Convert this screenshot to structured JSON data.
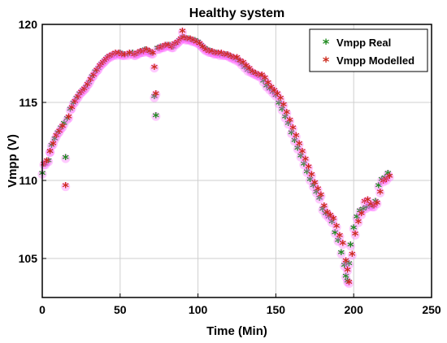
{
  "chart_data": {
    "type": "scatter",
    "title": "Healthy system",
    "xlabel": "Time (Min)",
    "ylabel": "Vmpp (V)",
    "xlim": [
      0,
      250
    ],
    "ylim": [
      102.5,
      120
    ],
    "xticks": [
      0,
      50,
      100,
      150,
      200,
      250
    ],
    "yticks": [
      105,
      110,
      115,
      120
    ],
    "grid": true,
    "legend_position": "top-right",
    "series": [
      {
        "name": "Vmpp Real",
        "color": "#1e8a1e",
        "marker": "*",
        "x": [
          0,
          2,
          4,
          5,
          6,
          8,
          10,
          12,
          14,
          15,
          16,
          18,
          20,
          22,
          24,
          26,
          28,
          30,
          32,
          34,
          36,
          38,
          40,
          42,
          44,
          46,
          48,
          50,
          52,
          55,
          58,
          60,
          62,
          64,
          66,
          68,
          70,
          72,
          73,
          74,
          76,
          78,
          80,
          82,
          84,
          86,
          88,
          90,
          92,
          94,
          96,
          98,
          100,
          102,
          104,
          106,
          108,
          110,
          112,
          114,
          116,
          118,
          120,
          122,
          124,
          126,
          128,
          130,
          132,
          134,
          136,
          138,
          140,
          142,
          144,
          146,
          148,
          150,
          152,
          154,
          156,
          158,
          160,
          162,
          164,
          166,
          168,
          170,
          172,
          174,
          176,
          178,
          180,
          182,
          184,
          186,
          188,
          190,
          192,
          194,
          195,
          196,
          197,
          198,
          200,
          202,
          204,
          206,
          208,
          210,
          212,
          214,
          216,
          218,
          220,
          222
        ],
        "y": [
          110.4,
          111,
          111.2,
          111.8,
          112.2,
          112.6,
          113,
          113.3,
          113.6,
          111.4,
          113.9,
          114.5,
          114.9,
          115.2,
          115.5,
          115.7,
          115.9,
          116.2,
          116.6,
          116.9,
          117.1,
          117.4,
          117.6,
          117.8,
          117.9,
          118,
          118,
          118.1,
          118,
          118,
          118.1,
          118,
          118.1,
          118.2,
          118.3,
          118.2,
          118.1,
          115.3,
          114.1,
          118.4,
          118.5,
          118.5,
          118.6,
          118.6,
          118.5,
          118.7,
          118.9,
          119.1,
          119,
          119,
          118.9,
          118.9,
          118.8,
          118.6,
          118.4,
          118.3,
          118.2,
          118.1,
          118.1,
          118,
          118,
          118,
          117.9,
          117.8,
          117.7,
          117.6,
          117.4,
          117.2,
          117,
          116.9,
          116.8,
          116.7,
          116.6,
          116.3,
          116,
          115.8,
          115.6,
          115.4,
          114.9,
          114.5,
          114,
          113.6,
          113,
          112.5,
          112,
          111.5,
          111,
          110.5,
          110,
          109.6,
          109.2,
          108.8,
          108.1,
          107.8,
          107.6,
          107.3,
          106.6,
          106.1,
          105.3,
          104.5,
          103.8,
          103.5,
          104.6,
          105.8,
          106.9,
          107.6,
          108,
          108.1,
          108.2,
          108.3,
          108.3,
          108.6,
          109.6,
          110,
          110.1,
          110.4
        ]
      },
      {
        "name": "Vmpp Modelled",
        "color": "#cc2a1c",
        "marker": "*",
        "x": [
          1,
          3,
          5,
          7,
          9,
          11,
          13,
          15,
          17,
          19,
          21,
          23,
          25,
          27,
          29,
          31,
          33,
          35,
          37,
          39,
          41,
          43,
          45,
          47,
          49,
          51,
          53,
          56,
          59,
          61,
          63,
          65,
          67,
          69,
          71,
          72,
          73,
          75,
          77,
          79,
          81,
          83,
          85,
          87,
          89,
          90,
          91,
          93,
          95,
          97,
          99,
          101,
          103,
          105,
          107,
          109,
          111,
          113,
          115,
          117,
          119,
          121,
          123,
          125,
          127,
          129,
          131,
          133,
          135,
          137,
          139,
          141,
          143,
          145,
          147,
          149,
          151,
          153,
          155,
          157,
          159,
          161,
          163,
          165,
          167,
          169,
          171,
          173,
          175,
          177,
          179,
          181,
          183,
          185,
          187,
          189,
          191,
          193,
          195,
          196,
          197,
          199,
          201,
          203,
          205,
          207,
          209,
          211,
          213,
          215,
          217,
          219,
          221,
          223
        ],
        "y": [
          111,
          111.2,
          111.8,
          112.3,
          112.8,
          113.1,
          113.4,
          109.6,
          114,
          114.6,
          115,
          115.3,
          115.6,
          115.8,
          116.1,
          116.4,
          116.7,
          117,
          117.3,
          117.5,
          117.7,
          117.9,
          118,
          118.1,
          118.1,
          118,
          118,
          118.1,
          118,
          118.1,
          118.2,
          118.2,
          118.3,
          118.2,
          118.1,
          117.2,
          115.5,
          118.4,
          118.5,
          118.6,
          118.6,
          118.5,
          118.7,
          118.8,
          119,
          119.5,
          119.1,
          119,
          119,
          118.9,
          118.8,
          118.7,
          118.5,
          118.3,
          118.2,
          118.2,
          118.1,
          118.1,
          118.1,
          118,
          118,
          117.9,
          117.8,
          117.8,
          117.6,
          117.5,
          117.3,
          117.1,
          116.9,
          116.8,
          116.7,
          116.7,
          116.5,
          116.2,
          115.9,
          115.7,
          115.5,
          115.2,
          114.8,
          114.3,
          113.8,
          113.3,
          112.8,
          112.3,
          111.8,
          111.3,
          110.8,
          110.3,
          109.8,
          109.4,
          109,
          108.3,
          107.9,
          107.7,
          107.5,
          107,
          106.4,
          105.9,
          104.8,
          104.2,
          103.4,
          105.2,
          106.5,
          107.3,
          107.8,
          108.6,
          108.7,
          108.4,
          108.3,
          108.5,
          109.2,
          109.9,
          110,
          110.2
        ]
      }
    ]
  }
}
